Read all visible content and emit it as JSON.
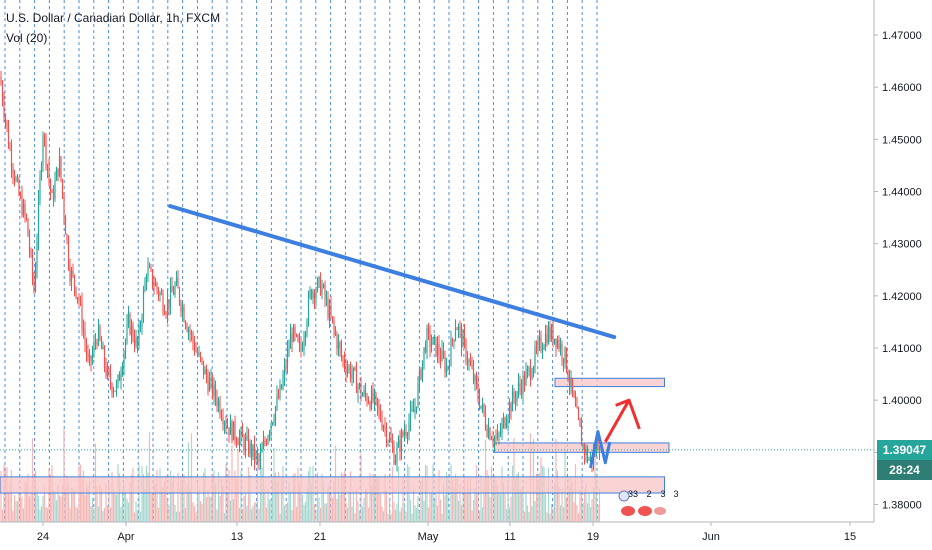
{
  "legend": {
    "title": "U.S. Dollar / Canadian Dollar, 1h, FXCM",
    "volume": "Vol (20)"
  },
  "price_scale": {
    "current_price": "1.39047",
    "countdown": "28:24",
    "current_color": "#26a69a",
    "countdown_color": "#2e7d74"
  },
  "events": {
    "labels": [
      "33",
      "2",
      "3",
      "3"
    ]
  },
  "colors": {
    "up": "#26a69a",
    "down": "#ef5350",
    "trendline": "#3d7fe0",
    "zone_fill": "#f8c6c6",
    "zone_border": "#3d7fe0",
    "arrow": "#f03030",
    "grid_dotted": "#3d7fe0"
  },
  "chart_data": {
    "type": "candlestick",
    "title": "U.S. Dollar / Canadian Dollar, 1h, FXCM",
    "ylim": [
      1.375,
      1.4755
    ],
    "y_ticks": [
      "1.47000",
      "1.46000",
      "1.45000",
      "1.44000",
      "1.43000",
      "1.42000",
      "1.41000",
      "1.40000",
      "1.39000",
      "1.38000"
    ],
    "x_ticks": [
      "24",
      "Apr",
      "13",
      "21",
      "May",
      "11",
      "19",
      "Jun",
      "15"
    ],
    "grid": "vertical dotted lines",
    "price_path": [
      {
        "x": 0.0,
        "y": 1.462
      },
      {
        "x": 0.6,
        "y": 1.449
      },
      {
        "x": 1.2,
        "y": 1.44
      },
      {
        "x": 1.8,
        "y": 1.434
      },
      {
        "x": 2.3,
        "y": 1.421
      },
      {
        "x": 2.9,
        "y": 1.452
      },
      {
        "x": 3.5,
        "y": 1.438
      },
      {
        "x": 4.0,
        "y": 1.446
      },
      {
        "x": 4.7,
        "y": 1.425
      },
      {
        "x": 5.3,
        "y": 1.42
      },
      {
        "x": 6.0,
        "y": 1.406
      },
      {
        "x": 6.6,
        "y": 1.413
      },
      {
        "x": 7.3,
        "y": 1.404
      },
      {
        "x": 7.9,
        "y": 1.402
      },
      {
        "x": 8.7,
        "y": 1.415
      },
      {
        "x": 9.3,
        "y": 1.41
      },
      {
        "x": 9.9,
        "y": 1.425
      },
      {
        "x": 10.5,
        "y": 1.422
      },
      {
        "x": 11.2,
        "y": 1.418
      },
      {
        "x": 11.9,
        "y": 1.422
      },
      {
        "x": 12.6,
        "y": 1.415
      },
      {
        "x": 13.3,
        "y": 1.409
      },
      {
        "x": 14.0,
        "y": 1.404
      },
      {
        "x": 14.7,
        "y": 1.4
      },
      {
        "x": 15.4,
        "y": 1.395
      },
      {
        "x": 16.1,
        "y": 1.393
      },
      {
        "x": 16.8,
        "y": 1.391
      },
      {
        "x": 17.5,
        "y": 1.388
      },
      {
        "x": 18.3,
        "y": 1.396
      },
      {
        "x": 19.0,
        "y": 1.402
      },
      {
        "x": 19.7,
        "y": 1.413
      },
      {
        "x": 20.3,
        "y": 1.409
      },
      {
        "x": 21.0,
        "y": 1.421
      },
      {
        "x": 21.7,
        "y": 1.422
      },
      {
        "x": 22.4,
        "y": 1.415
      },
      {
        "x": 23.1,
        "y": 1.408
      },
      {
        "x": 23.8,
        "y": 1.405
      },
      {
        "x": 24.5,
        "y": 1.401
      },
      {
        "x": 25.2,
        "y": 1.4
      },
      {
        "x": 26.0,
        "y": 1.395
      },
      {
        "x": 26.7,
        "y": 1.389
      },
      {
        "x": 27.3,
        "y": 1.394
      },
      {
        "x": 28.0,
        "y": 1.398
      },
      {
        "x": 28.8,
        "y": 1.412
      },
      {
        "x": 29.5,
        "y": 1.41
      },
      {
        "x": 30.2,
        "y": 1.406
      },
      {
        "x": 30.8,
        "y": 1.415
      },
      {
        "x": 31.5,
        "y": 1.409
      },
      {
        "x": 32.2,
        "y": 1.402
      },
      {
        "x": 32.9,
        "y": 1.395
      },
      {
        "x": 33.6,
        "y": 1.392
      },
      {
        "x": 34.3,
        "y": 1.398
      },
      {
        "x": 35.0,
        "y": 1.402
      },
      {
        "x": 35.7,
        "y": 1.405
      },
      {
        "x": 36.4,
        "y": 1.41
      },
      {
        "x": 37.0,
        "y": 1.413
      },
      {
        "x": 37.6,
        "y": 1.412
      },
      {
        "x": 38.2,
        "y": 1.408
      },
      {
        "x": 38.8,
        "y": 1.399
      },
      {
        "x": 39.4,
        "y": 1.391
      },
      {
        "x": 39.9,
        "y": 1.388
      },
      {
        "x": 40.4,
        "y": 1.392
      }
    ],
    "trendline": {
      "x": [
        11.5,
        41.5
      ],
      "y": [
        1.4372,
        1.4121
      ]
    },
    "zones": [
      {
        "x": [
          37.5,
          44.9
        ],
        "y": [
          1.4026,
          1.4042
        ]
      },
      {
        "x": [
          33.4,
          45.2
        ],
        "y": [
          1.39,
          1.3918
        ]
      },
      {
        "x": [
          0.0,
          44.9
        ],
        "y": [
          1.3822,
          1.3853
        ]
      }
    ],
    "projection": {
      "blue": {
        "x": [
          39.9,
          40.4,
          40.9,
          41.2
        ],
        "y": [
          1.387,
          1.394,
          1.388,
          1.392
        ]
      },
      "red": {
        "x": [
          40.9,
          42.5,
          43.2
        ],
        "y": [
          1.392,
          1.4,
          1.3945
        ]
      }
    }
  }
}
